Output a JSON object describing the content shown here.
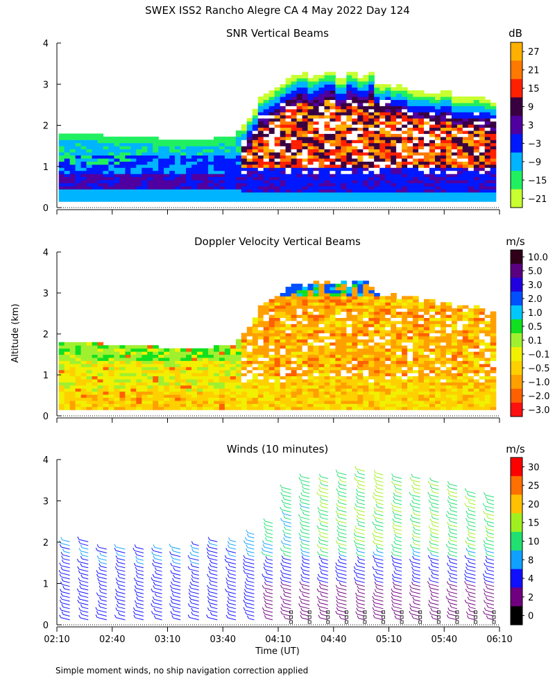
{
  "figure": {
    "title": "SWEX ISS2 Rancho Alegre CA   4 May 2022 Day 124",
    "ylabel": "Altitude (km)",
    "xlabel": "Time (UT)",
    "footnote": "Simple moment winds, no ship navigation correction applied"
  },
  "chart_data": [
    {
      "type": "heatmap",
      "title": "SNR Vertical Beams",
      "unit": "dB",
      "xlim_minutes": [
        130,
        370
      ],
      "ylim": [
        0,
        4
      ],
      "yticks": [
        "0",
        "1",
        "2",
        "3",
        "4"
      ],
      "colorbar": {
        "labels": [
          "27",
          "21",
          "15",
          "9",
          "3",
          "−3",
          "−9",
          "−15",
          "−21"
        ],
        "colors": [
          "#ffb000",
          "#ff7800",
          "#ff2000",
          "#380040",
          "#5000a0",
          "#0018ff",
          "#00b4ff",
          "#20f060",
          "#c8ff30"
        ]
      },
      "description_fields": {
        "boundary_layer_top_km_early": 1.8,
        "boundary_layer_top_km_late": 2.6,
        "transition_time": "03:42"
      }
    },
    {
      "type": "heatmap",
      "title": "Doppler Velocity Vertical Beams",
      "unit": "m/s",
      "xlim_minutes": [
        130,
        370
      ],
      "ylim": [
        0,
        4
      ],
      "yticks": [
        "0",
        "1",
        "2",
        "3",
        "4"
      ],
      "colorbar": {
        "labels": [
          "10.0",
          "5.0",
          "3.0",
          "2.0",
          "1.0",
          "0.5",
          "0.1",
          "−0.1",
          "−0.5",
          "−1.0",
          "−2.0",
          "−3.0"
        ],
        "colors": [
          "#300018",
          "#5a0080",
          "#2000e0",
          "#0050ff",
          "#00c8ff",
          "#10e020",
          "#a0f030",
          "#f0f000",
          "#ffd000",
          "#ffa000",
          "#ff6000",
          "#ff1010"
        ]
      }
    },
    {
      "type": "scatter",
      "title": "Winds (10 minutes)",
      "unit": "m/s",
      "xlim_minutes": [
        130,
        370
      ],
      "ylim": [
        0,
        4
      ],
      "yticks": [
        "0",
        "1",
        "2",
        "3",
        "4"
      ],
      "xticks": [
        "02:10",
        "02:40",
        "03:10",
        "03:40",
        "04:10",
        "04:40",
        "05:10",
        "05:40",
        "06:10"
      ],
      "profile_times_minutes": [
        137,
        147,
        157,
        167,
        177,
        187,
        197,
        207,
        217,
        227,
        237,
        247,
        257,
        267,
        277,
        287,
        297,
        307,
        317,
        327,
        337,
        347,
        357,
        367
      ],
      "profile_top_km": [
        2.1,
        2.1,
        1.9,
        1.9,
        1.9,
        1.9,
        1.9,
        1.95,
        2.05,
        2.1,
        2.2,
        2.5,
        3.3,
        3.6,
        3.55,
        3.7,
        3.8,
        3.65,
        3.6,
        3.6,
        3.5,
        3.4,
        3.2,
        3.1
      ],
      "colorbar": {
        "labels": [
          "30",
          "25",
          "20",
          "15",
          "10",
          "8",
          "4",
          "2",
          "0"
        ],
        "colors": [
          "#ff0000",
          "#ff7000",
          "#ffc000",
          "#a0f020",
          "#20e070",
          "#10a0ff",
          "#1010ff",
          "#700080",
          "#000000"
        ]
      }
    }
  ]
}
